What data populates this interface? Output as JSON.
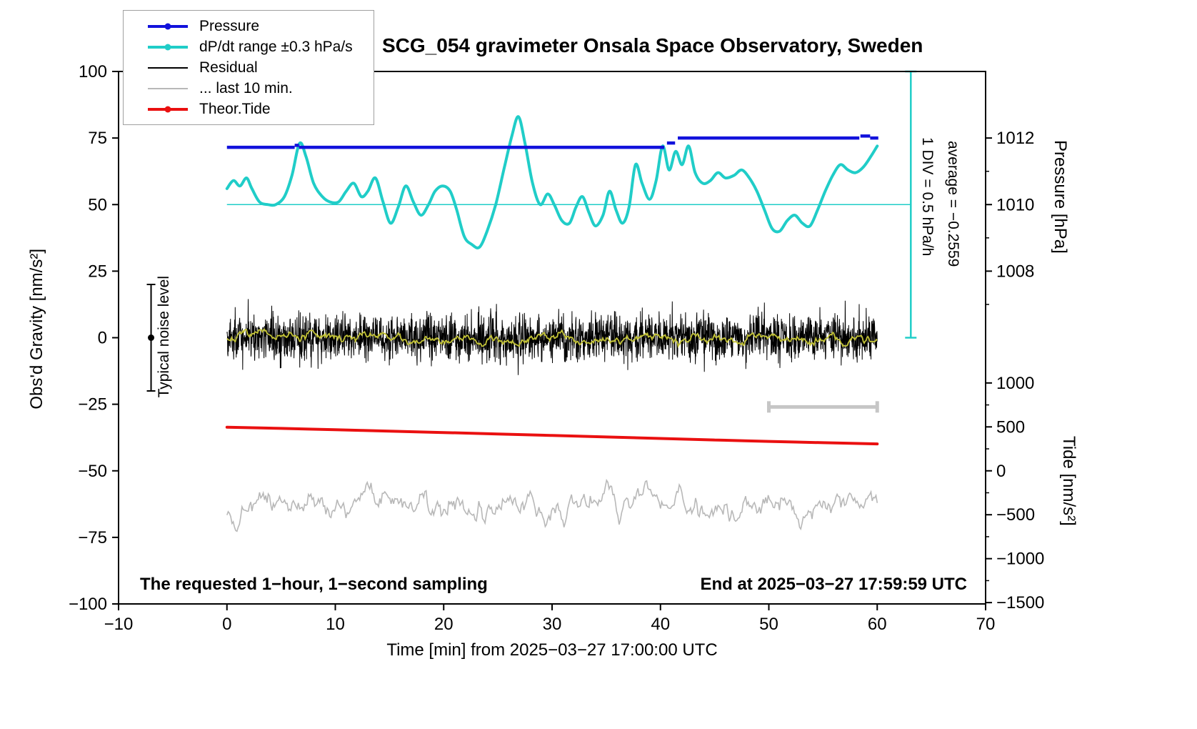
{
  "chart_data": {
    "type": "line",
    "title": "SCG_054 gravimeter Onsala Space Observatory, Sweden",
    "xlabel": "Time [min] from 2025−03−27 17:00:00 UTC",
    "ylabel_left": "Obs'd Gravity [nm/s²]",
    "ylabel_pressure": "Pressure [hPa]",
    "ylabel_tide": "Tide [nm/s²]",
    "xlim": [
      -10,
      70
    ],
    "ylim_left": [
      -100,
      100
    ],
    "xticks": [
      -10,
      0,
      10,
      20,
      30,
      40,
      50,
      60,
      70
    ],
    "yticks_left": [
      100,
      75,
      50,
      25,
      0,
      -25,
      -50,
      -75,
      -100
    ],
    "grid": false,
    "legend_position": "top-left",
    "legend": {
      "entries": [
        {
          "id": "pressure",
          "label": "Pressure",
          "color": "#1212dc",
          "marker": true,
          "thick": true
        },
        {
          "id": "dpdt",
          "label": "dP/dt range ±0.3 hPa/s",
          "color": "#20cdc8",
          "marker": true,
          "thick": true
        },
        {
          "id": "residual",
          "label": "Residual",
          "color": "#000000",
          "marker": false,
          "thick": false
        },
        {
          "id": "last10",
          "label": "... last 10 min.",
          "color": "#b8b8b8",
          "marker": false,
          "thick": false
        },
        {
          "id": "tide",
          "label": "Theor.Tide",
          "color": "#ea1010",
          "marker": true,
          "thick": true
        }
      ]
    },
    "pressure_axis": {
      "ticks": [
        1012,
        1010,
        1008
      ],
      "minor": [
        1011,
        1009,
        1007
      ],
      "hpa_ref": 1008,
      "gravity_ref": 25,
      "gravity_per_hpa": 12.5
    },
    "tide_axis": {
      "ticks": [
        1000,
        500,
        0,
        -500,
        -1000,
        -1500
      ],
      "minor": [
        750,
        250,
        -250,
        -750,
        -1250
      ],
      "gravity_at_zero": -50,
      "gravity_per_unit": 0.033
    },
    "series": {
      "pressure": {
        "name": "Pressure",
        "color": "#1212dc",
        "units": "hPa",
        "width": 4.5,
        "segments": [
          {
            "x1": 0.0,
            "x2": 6.25,
            "hpa": 1011.72
          },
          {
            "x1": 6.25,
            "x2": 6.65,
            "hpa": 1011.78
          },
          {
            "x1": 6.65,
            "x2": 40.35,
            "hpa": 1011.72
          },
          {
            "x1": 40.6,
            "x2": 41.35,
            "hpa": 1011.85
          },
          {
            "x1": 41.6,
            "x2": 58.35,
            "hpa": 1012.0
          },
          {
            "x1": 58.45,
            "x2": 59.35,
            "hpa": 1012.06
          },
          {
            "x1": 59.35,
            "x2": 60.1,
            "hpa": 1012.0
          }
        ]
      },
      "dpdt": {
        "name": "dP/dt range ±0.3 hPa/s",
        "color": "#20cdc8",
        "width": 4,
        "center_gravity": 50,
        "x": [
          0,
          0.6,
          1.2,
          1.8,
          2.3,
          3.0,
          3.8,
          4.5,
          5.3,
          6.0,
          6.7,
          7.3,
          8.0,
          8.8,
          9.5,
          10.3,
          11.0,
          11.7,
          12.4,
          13.0,
          13.7,
          14.4,
          15.1,
          15.8,
          16.5,
          17.2,
          17.9,
          18.6,
          19.2,
          19.9,
          20.6,
          21.2,
          21.9,
          22.6,
          23.3,
          24.0,
          24.8,
          25.6,
          26.3,
          26.9,
          27.5,
          28.2,
          28.9,
          29.6,
          30.2,
          30.9,
          31.6,
          32.2,
          32.8,
          33.4,
          34.0,
          34.7,
          35.3,
          35.9,
          36.5,
          37.1,
          37.7,
          38.3,
          39.0,
          39.6,
          40.2,
          40.8,
          41.4,
          42.0,
          42.6,
          43.2,
          43.9,
          44.6,
          45.3,
          46.0,
          46.8,
          47.5,
          48.2,
          48.9,
          49.6,
          50.3,
          51.0,
          51.7,
          52.4,
          53.1,
          53.8,
          54.5,
          55.2,
          55.9,
          56.6,
          57.3,
          58.0,
          58.7,
          59.4,
          60.0
        ],
        "gravity": [
          56,
          59,
          57,
          60,
          56,
          51,
          50,
          50,
          53,
          61,
          73,
          68,
          58,
          53,
          51,
          51,
          55,
          58,
          53,
          55,
          60,
          51,
          43,
          49,
          57,
          51,
          46,
          50,
          55,
          57,
          55,
          48,
          38,
          35,
          34,
          40,
          50,
          64,
          76,
          83,
          73,
          58,
          50,
          54,
          50,
          44,
          43,
          49,
          53,
          47,
          42,
          46,
          55,
          48,
          43,
          49,
          65,
          58,
          52,
          59,
          72,
          63,
          70,
          65,
          72,
          62,
          58,
          59,
          62,
          60,
          61,
          63,
          60,
          55,
          48,
          41,
          40,
          44,
          46,
          43,
          42,
          48,
          55,
          61,
          65,
          63,
          62,
          64,
          68,
          72
        ]
      },
      "residual": {
        "name": "Residual",
        "color": "#000000",
        "width": 1,
        "x_range": [
          0,
          60
        ],
        "gen": {
          "seed": 42,
          "points": 2600,
          "std": 4.3,
          "clamp": 14.5
        },
        "center": 0
      },
      "residual_mean": {
        "name": "Residual running mean",
        "color": "#c3c337",
        "width": 1.8,
        "x_range": [
          0,
          60
        ],
        "gen": {
          "seed": 7,
          "points": 700,
          "ar": 0.9,
          "innov": 0.55,
          "clamp": 3.2
        },
        "center": 0
      },
      "last10": {
        "name": "... last 10 min.",
        "color": "#b8b8b8",
        "width": 1.6,
        "x_range": [
          0,
          60
        ],
        "gen": {
          "seed": 13,
          "points": 520,
          "ar": 0.88,
          "innov": 1.7,
          "clamp": 13
        },
        "center": -62
      },
      "tide": {
        "name": "Theor.Tide",
        "color": "#ea1010",
        "width": 4,
        "units": "nm/s²",
        "x": [
          0,
          5,
          10,
          15,
          20,
          25,
          30,
          35,
          40,
          45,
          50,
          55,
          60
        ],
        "tide": [
          497,
          483,
          468,
          452,
          436,
          419,
          402,
          385,
          368,
          351,
          335,
          320,
          306
        ]
      }
    },
    "extras": {
      "noise_bar": {
        "x": -7,
        "center_gravity": 0,
        "half_range": 20,
        "label": "Typical noise level"
      },
      "div_line": {
        "x": 63.1,
        "gravity_top": 100,
        "gravity_bottom": 0,
        "color": "#20cdc8"
      },
      "div_label": "1 DIV = 0.5 hPa/h",
      "avg_label": "average = −0.2559",
      "dpdt_centerline": {
        "gravity": 50,
        "x1": 0,
        "x2": 63.1
      },
      "last10_bar": {
        "x1": 50,
        "x2": 60,
        "gravity": -26,
        "color": "#c6c6c6"
      },
      "bottom_left": "The requested 1−hour, 1−second sampling",
      "bottom_right": "End at 2025−03−27 17:59:59 UTC"
    }
  }
}
